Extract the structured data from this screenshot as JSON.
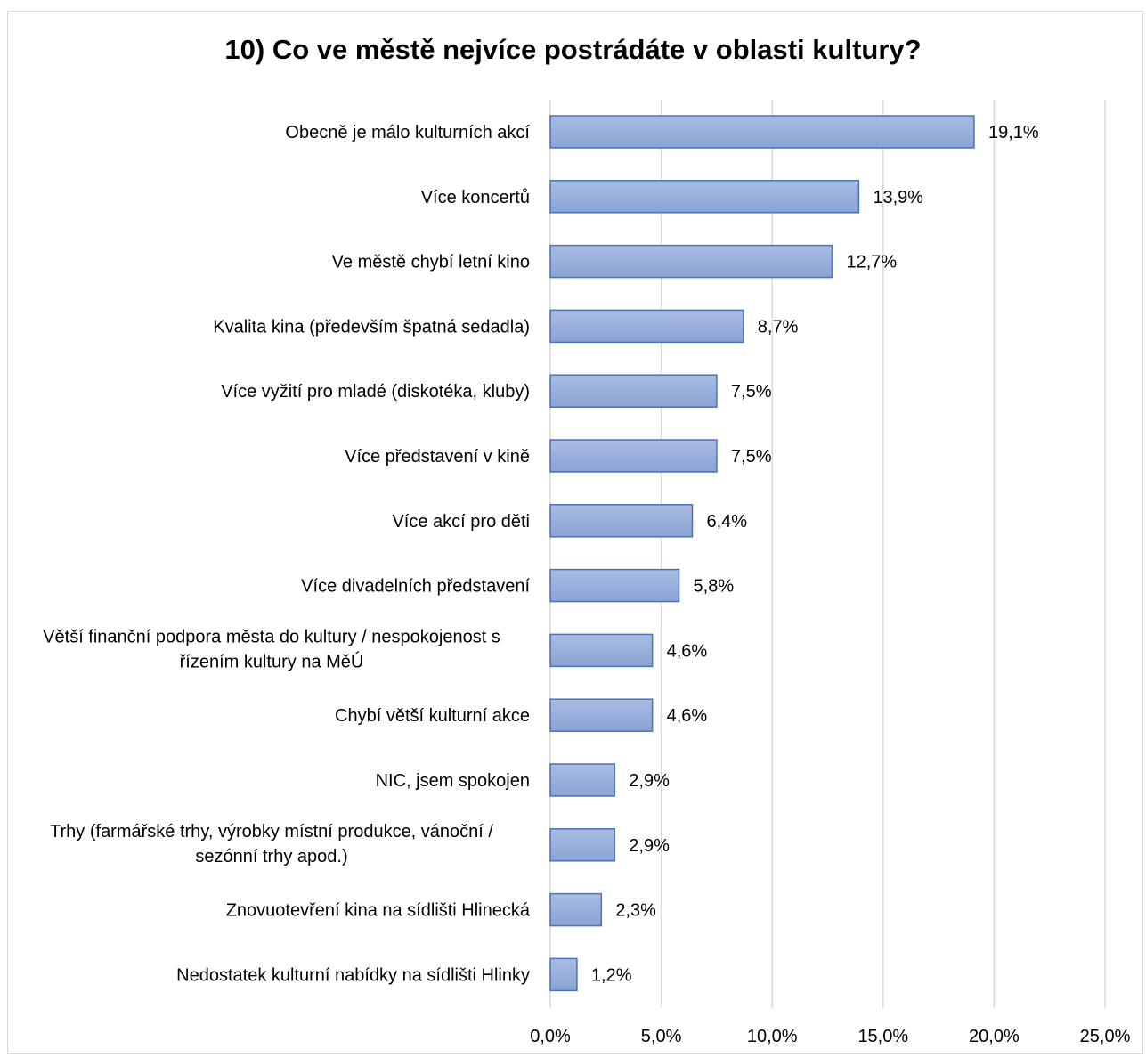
{
  "chart_data": {
    "type": "bar",
    "orientation": "horizontal",
    "title": "10) Co ve městě nejvíce postrádáte v oblasti kultury?",
    "categories": [
      [
        "Obecně je málo kulturních akcí"
      ],
      [
        "Více koncertů"
      ],
      [
        "Ve městě chybí letní kino"
      ],
      [
        "Kvalita kina (především špatná sedadla)"
      ],
      [
        "Více vyžití pro mladé (diskotéka, kluby)"
      ],
      [
        "Více představení v kině"
      ],
      [
        "Více akcí pro děti"
      ],
      [
        "Více divadelních představení"
      ],
      [
        "Větší finanční podpora města do kultury / nespokojenost s",
        "řízením kultury na MěÚ"
      ],
      [
        "Chybí větší kulturní akce"
      ],
      [
        "NIC, jsem spokojen"
      ],
      [
        "Trhy (farmářské trhy, výrobky místní produkce, vánoční /",
        "sezónní trhy apod.)"
      ],
      [
        "Znovuotevření kina na sídlišti Hlinecká"
      ],
      [
        "Nedostatek kulturní nabídky na sídlišti Hlinky"
      ]
    ],
    "values": [
      19.1,
      13.9,
      12.7,
      8.7,
      7.5,
      7.5,
      6.4,
      5.8,
      4.6,
      4.6,
      2.9,
      2.9,
      2.3,
      1.2
    ],
    "data_labels": [
      "19,1%",
      "13,9%",
      "12,7%",
      "8,7%",
      "7,5%",
      "7,5%",
      "6,4%",
      "5,8%",
      "4,6%",
      "4,6%",
      "2,9%",
      "2,9%",
      "2,3%",
      "1,2%"
    ],
    "xlim": [
      0,
      25
    ],
    "xticks": [
      0,
      5,
      10,
      15,
      20,
      25
    ],
    "xtick_labels": [
      "0,0%",
      "5,0%",
      "10,0%",
      "15,0%",
      "20,0%",
      "25,0%"
    ],
    "grid": "vertical",
    "legend": "none",
    "bar_fill_top": "#a9bde3",
    "bar_fill_bottom": "#8aa3d4",
    "bar_stroke": "#4a73b8",
    "gridline_color": "#d9d9d9"
  }
}
